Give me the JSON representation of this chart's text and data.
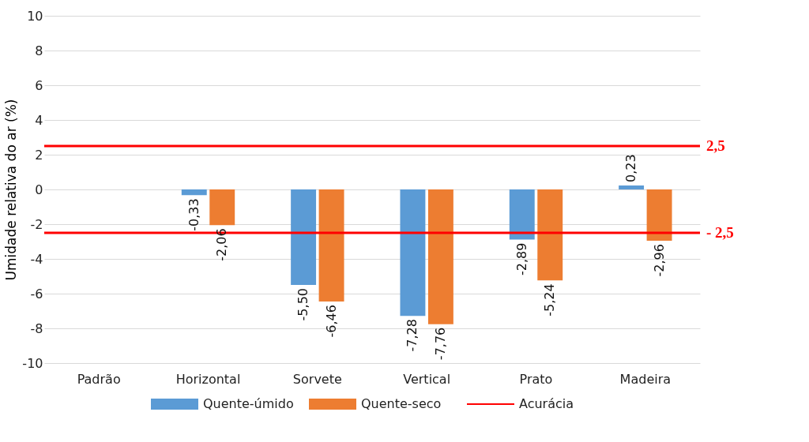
{
  "chart_data": {
    "type": "bar",
    "ylabel": "Umidade relativa do ar (%)",
    "categories": [
      "Padrão",
      "Horizontal",
      "Sorvete",
      "Vertical",
      "Prato",
      "Madeira"
    ],
    "series": [
      {
        "name": "Quente-úmido",
        "color": "#5b9bd5",
        "values": [
          null,
          -0.33,
          -5.5,
          -7.28,
          -2.89,
          0.23
        ],
        "value_labels": [
          null,
          "-0,33",
          "-5,50",
          "-7,28",
          "-2,89",
          "0,23"
        ]
      },
      {
        "name": "Quente-seco",
        "color": "#ed7d31",
        "values": [
          null,
          -2.06,
          -6.46,
          -7.76,
          -5.24,
          -2.96
        ],
        "value_labels": [
          null,
          "-2,06",
          "-6,46",
          "-7,76",
          "-5,24",
          "-2,96"
        ]
      }
    ],
    "ylim": [
      -10,
      10
    ],
    "yticks": [
      -10,
      -8,
      -6,
      -4,
      -2,
      0,
      2,
      4,
      6,
      8,
      10
    ],
    "grid": "y",
    "legend": "bottom",
    "ref_lines": [
      {
        "axis": "y",
        "value": 2.5,
        "label": "2,5",
        "color": "#ff0000"
      },
      {
        "axis": "y",
        "value": -2.5,
        "label": "- 2,5",
        "color": "#ff0000"
      }
    ],
    "annotations": [
      "Acurácia"
    ]
  }
}
